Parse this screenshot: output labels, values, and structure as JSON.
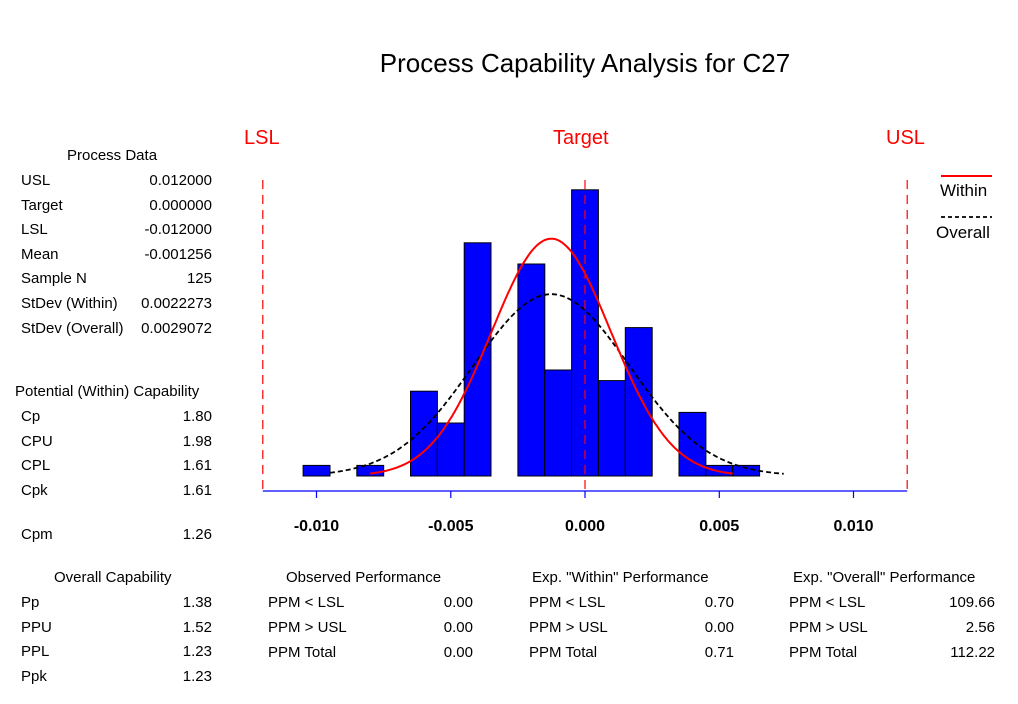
{
  "title": "Process Capability Analysis for C27",
  "spec_labels": {
    "lsl": "LSL",
    "target": "Target",
    "usl": "USL"
  },
  "legend": {
    "within": "Within",
    "overall": "Overall"
  },
  "colors": {
    "bars": "#0000ff",
    "within_curve": "#ff0000",
    "overall_curve": "#000000",
    "spec_lines": "#ff0000",
    "axis": "#0000ff"
  },
  "process_data": {
    "title": "Process Data",
    "rows": [
      {
        "label": "USL",
        "value": "0.012000"
      },
      {
        "label": "Target",
        "value": "0.000000"
      },
      {
        "label": "LSL",
        "value": "-0.012000"
      },
      {
        "label": "Mean",
        "value": "-0.001256"
      },
      {
        "label": "Sample N",
        "value": "125"
      },
      {
        "label": "StDev (Within)",
        "value": "0.0022273"
      },
      {
        "label": "StDev (Overall)",
        "value": "0.0029072"
      }
    ]
  },
  "potential_capability": {
    "title": "Potential (Within) Capability",
    "rows": [
      {
        "label": "Cp",
        "value": "1.80"
      },
      {
        "label": "CPU",
        "value": "1.98"
      },
      {
        "label": "CPL",
        "value": "1.61"
      },
      {
        "label": "Cpk",
        "value": "1.61"
      }
    ],
    "cpm": {
      "label": "Cpm",
      "value": "1.26"
    }
  },
  "overall_capability": {
    "title": "Overall Capability",
    "rows": [
      {
        "label": "Pp",
        "value": "1.38"
      },
      {
        "label": "PPU",
        "value": "1.52"
      },
      {
        "label": "PPL",
        "value": "1.23"
      },
      {
        "label": "Ppk",
        "value": "1.23"
      }
    ]
  },
  "observed_performance": {
    "title": "Observed Performance",
    "rows": [
      {
        "label": "PPM < LSL",
        "value": "0.00"
      },
      {
        "label": "PPM > USL",
        "value": "0.00"
      },
      {
        "label": "PPM Total",
        "value": "0.00"
      }
    ]
  },
  "within_performance": {
    "title": "Exp. \"Within\" Performance",
    "rows": [
      {
        "label": "PPM < LSL",
        "value": "0.70"
      },
      {
        "label": "PPM > USL",
        "value": "0.00"
      },
      {
        "label": "PPM Total",
        "value": "0.71"
      }
    ]
  },
  "overall_performance": {
    "title": "Exp. \"Overall\" Performance",
    "rows": [
      {
        "label": "PPM < LSL",
        "value": "109.66"
      },
      {
        "label": "PPM > USL",
        "value": "2.56"
      },
      {
        "label": "PPM Total",
        "value": "112.22"
      }
    ]
  },
  "chart_data": {
    "type": "bar",
    "subtype": "histogram",
    "title": "Process Capability Analysis for C27",
    "xlabel": "",
    "ylabel": "",
    "xlim": [
      -0.012,
      0.012
    ],
    "x_ticks": [
      -0.01,
      -0.005,
      0.0,
      0.005,
      0.01
    ],
    "x_tick_labels": [
      "-0.010",
      "-0.005",
      "0.000",
      "0.005",
      "0.010"
    ],
    "bin_width": 0.001,
    "bins": [
      {
        "start": -0.0105,
        "end": -0.0095,
        "count": 1
      },
      {
        "start": -0.0085,
        "end": -0.0075,
        "count": 1
      },
      {
        "start": -0.0065,
        "end": -0.0055,
        "count": 8
      },
      {
        "start": -0.0055,
        "end": -0.0045,
        "count": 5
      },
      {
        "start": -0.0045,
        "end": -0.0035,
        "count": 22
      },
      {
        "start": -0.0025,
        "end": -0.0015,
        "count": 20
      },
      {
        "start": -0.0015,
        "end": -0.0005,
        "count": 10
      },
      {
        "start": -0.0005,
        "end": 0.0005,
        "count": 27
      },
      {
        "start": 0.0005,
        "end": 0.0015,
        "count": 9
      },
      {
        "start": 0.0015,
        "end": 0.0025,
        "count": 14
      },
      {
        "start": 0.0035,
        "end": 0.0045,
        "count": 6
      },
      {
        "start": 0.0045,
        "end": 0.0055,
        "count": 1
      },
      {
        "start": 0.0055,
        "end": 0.0065,
        "count": 1
      }
    ],
    "specs": {
      "lsl": -0.012,
      "target": 0.0,
      "usl": 0.012
    },
    "series": [
      {
        "name": "Within",
        "kind": "normal-curve",
        "mean": -0.001256,
        "stdev": 0.0022273
      },
      {
        "name": "Overall",
        "kind": "normal-curve",
        "mean": -0.001256,
        "stdev": 0.0029072
      }
    ],
    "ylim": [
      0,
      28
    ],
    "grid": false,
    "legend": "right"
  }
}
